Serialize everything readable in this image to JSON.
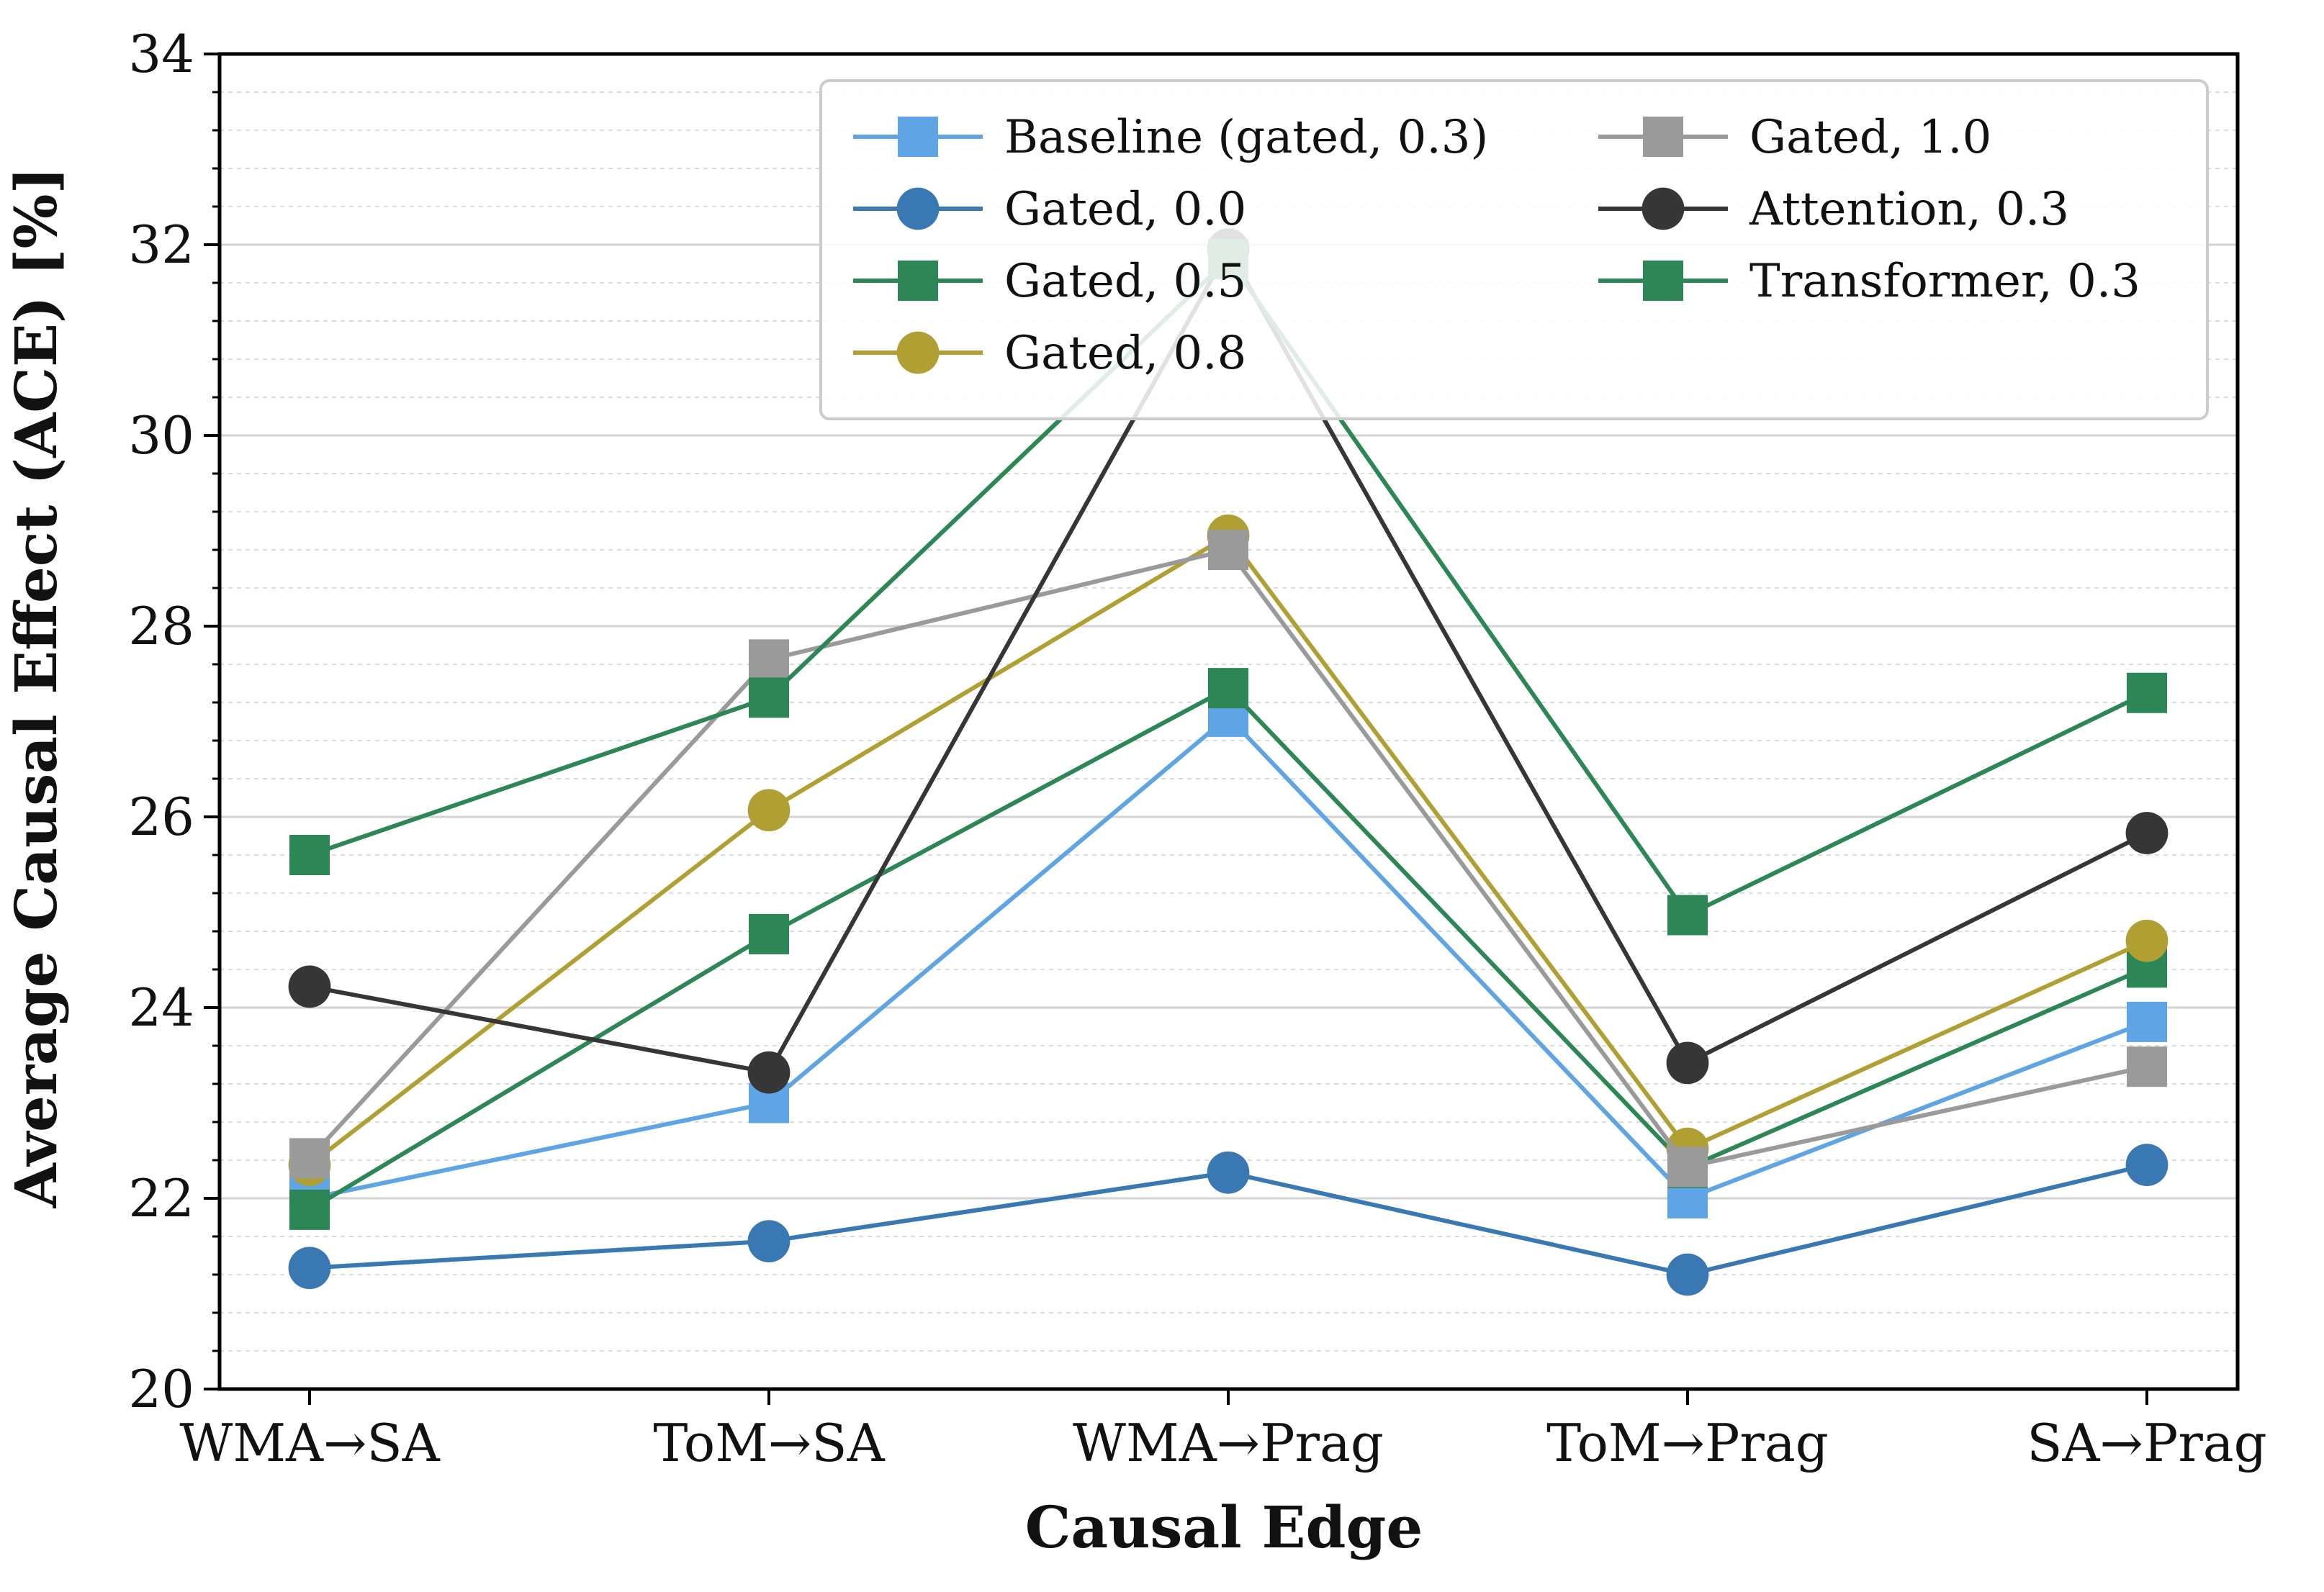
{
  "chart_data": {
    "type": "line",
    "title": "",
    "xlabel": "Causal Edge",
    "ylabel": "Average Causal Effect (ACE) [%]",
    "ylim": [
      20,
      34
    ],
    "yticks": [
      "20",
      "22",
      "24",
      "26",
      "28",
      "30",
      "32",
      "34"
    ],
    "categories": [
      "WMA→SA",
      "ToM→SA",
      "WMA→Prag",
      "ToM→Prag",
      "SA→Prag"
    ],
    "grid": "horizontal major and minor",
    "legend_position": "top-right",
    "series": [
      {
        "name": "Baseline (gated, 0.3)",
        "color": "#5fa4e4",
        "marker": "square",
        "values": [
          22.0,
          23.0,
          27.05,
          22.0,
          23.85
        ]
      },
      {
        "name": "Gated, 0.0",
        "color": "#3a78b4",
        "marker": "circle",
        "values": [
          21.27,
          21.55,
          22.27,
          21.2,
          22.35
        ]
      },
      {
        "name": "Gated, 0.5",
        "color": "#2c8655",
        "marker": "square",
        "values": [
          21.88,
          24.77,
          27.35,
          22.32,
          24.42
        ]
      },
      {
        "name": "Gated, 0.8",
        "color": "#b0a034",
        "marker": "circle",
        "values": [
          22.35,
          26.07,
          28.95,
          22.52,
          24.7
        ]
      },
      {
        "name": "Gated, 1.0",
        "color": "#9a9a9a",
        "marker": "square",
        "values": [
          22.42,
          27.65,
          28.8,
          22.33,
          23.38
        ]
      },
      {
        "name": "Attention, 0.3",
        "color": "#363636",
        "marker": "circle",
        "values": [
          24.22,
          23.32,
          31.95,
          23.42,
          25.83
        ]
      },
      {
        "name": "Transformer, 0.3",
        "color": "#2c8655",
        "marker": "square",
        "values": [
          25.6,
          27.25,
          31.85,
          24.97,
          27.3
        ]
      }
    ]
  }
}
